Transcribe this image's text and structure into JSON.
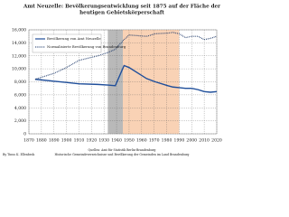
{
  "chart_data": {
    "type": "line",
    "title": [
      "Amt Neuzelle: Bevölkerungsentwicklung seit 1875 auf der Fläche der",
      "heutigen Gebietskörperschaft"
    ],
    "x": [
      1875,
      1890,
      1900,
      1910,
      1925,
      1933,
      1939,
      1946,
      1950,
      1964,
      1971,
      1981,
      1985,
      1990,
      1995,
      2000,
      2005,
      2010,
      2015,
      2020
    ],
    "series": [
      {
        "name": "Bevölkerung von Amt Neuzelle",
        "color": "#1f4e9a",
        "style": "solid",
        "values": [
          8400,
          8100,
          7900,
          7700,
          7600,
          7500,
          7400,
          10500,
          10200,
          8500,
          8000,
          7400,
          7200,
          7100,
          7000,
          7000,
          6800,
          6500,
          6400,
          6500
        ]
      },
      {
        "name": "Normalisierte Bevölkerung von Brandenburg",
        "color": "#1f3a6a",
        "style": "dotted",
        "values": [
          8400,
          9300,
          10200,
          11300,
          12000,
          12500,
          13000,
          14500,
          15200,
          15000,
          15400,
          15500,
          15600,
          15400,
          14800,
          15000,
          15000,
          14500,
          14700,
          15000
        ]
      }
    ],
    "xlim": [
      1870,
      2020
    ],
    "xticks": [
      1870,
      1880,
      1890,
      1900,
      1910,
      1920,
      1930,
      1940,
      1950,
      1960,
      1970,
      1980,
      1990,
      2000,
      2010,
      2020
    ],
    "ylim": [
      0,
      16000
    ],
    "yticks": [
      0,
      {
        "value": 2000,
        "label": "2,000"
      },
      {
        "value": 4000,
        "label": "4,000"
      },
      {
        "value": 6000,
        "label": "6,000"
      },
      {
        "value": 8000,
        "label": "8,000"
      },
      {
        "value": 10000,
        "label": "10,000"
      },
      {
        "value": 12000,
        "label": "12,000"
      },
      {
        "value": 14000,
        "label": "14,000"
      },
      {
        "value": 16000,
        "label": "16,000"
      }
    ],
    "grid": true,
    "shaded_periods": [
      {
        "from": 1933,
        "to": 1945,
        "color": "#a8a8a8"
      },
      {
        "from": 1945,
        "to": 1990,
        "color": "#f7c7a3"
      }
    ],
    "author": "By Tinus K. Ellenbrok",
    "source": [
      "Quellen: Amt für Statistik Berlin-Brandenburg",
      "Historische Gemeindeverzeichnisse und Bevölkerung der Gemeinden im Land Brandenburg"
    ]
  }
}
